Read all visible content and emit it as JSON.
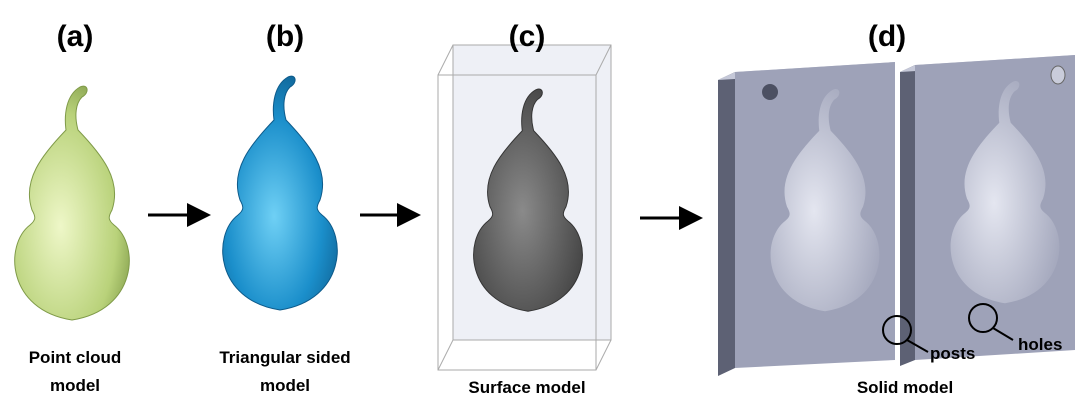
{
  "panels": [
    {
      "label": "(a)",
      "caption": [
        "Point cloud",
        "model"
      ]
    },
    {
      "label": "(b)",
      "caption": [
        "Triangular sided",
        "model"
      ]
    },
    {
      "label": "(c)",
      "caption": [
        "Surface model"
      ]
    },
    {
      "label": "(d)",
      "caption": [
        "Solid model"
      ]
    }
  ],
  "callouts": [
    "posts",
    "holes"
  ]
}
